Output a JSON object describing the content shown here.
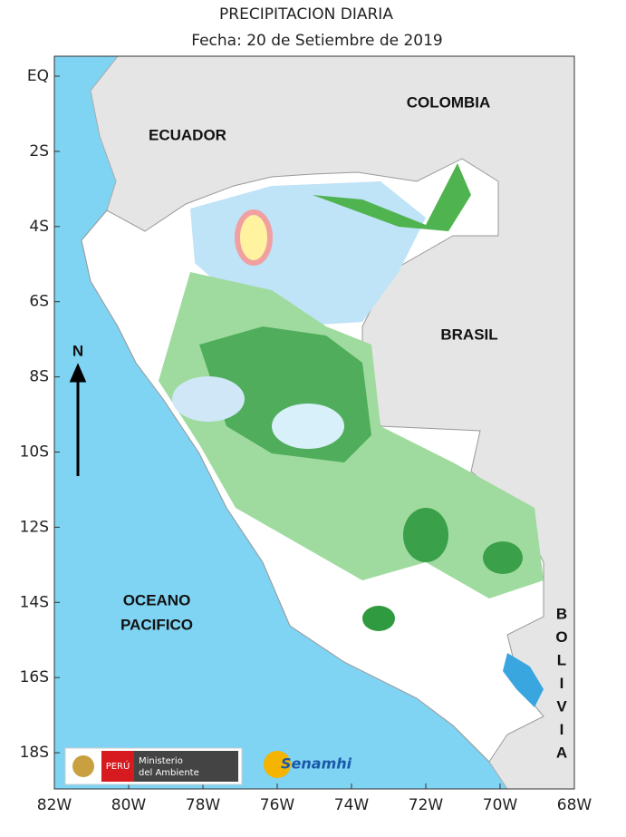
{
  "title": "PRECIPITACION DIARIA",
  "subtitle": "Fecha: 20 de Setiembre de 2019",
  "map": {
    "lat_labels": [
      "EQ",
      "2S",
      "4S",
      "6S",
      "8S",
      "10S",
      "12S",
      "14S",
      "16S",
      "18S"
    ],
    "lon_labels": [
      "82W",
      "80W",
      "78W",
      "76W",
      "74W",
      "72W",
      "70W",
      "68W"
    ],
    "places": {
      "ecuador": "ECUADOR",
      "colombia": "COLOMBIA",
      "brasil": "BRASIL",
      "ocean_1": "OCEANO",
      "ocean_2": "PACIFICO",
      "bolivia": [
        "B",
        "O",
        "L",
        "I",
        "V",
        "I",
        "A"
      ]
    },
    "north": "N"
  },
  "logos": {
    "peru": "PERÚ",
    "ministry_1": "Ministerio",
    "ministry_2": "del Ambiente",
    "senamhi": "Senamhi"
  }
}
